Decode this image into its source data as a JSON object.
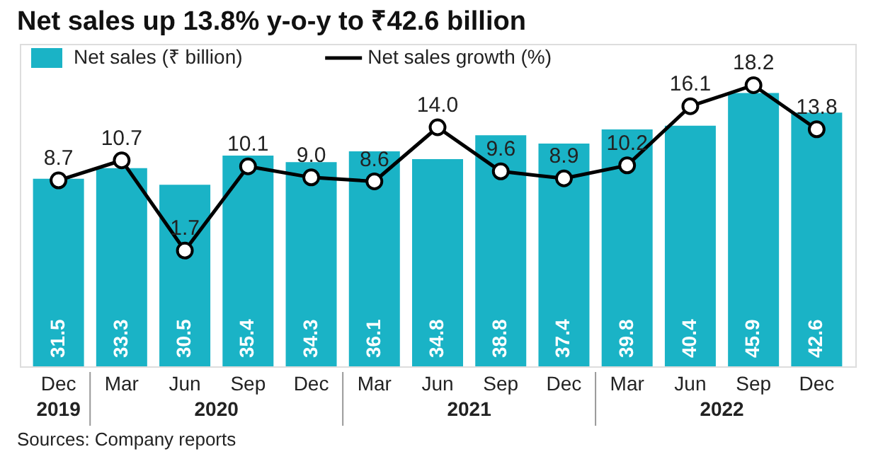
{
  "chart_data": {
    "type": "bar",
    "title": "Net sales up 13.8% y-o-y to ₹42.6 billion",
    "categories": [
      "Dec",
      "Mar",
      "Jun",
      "Sep",
      "Dec",
      "Mar",
      "Jun",
      "Sep",
      "Dec",
      "Mar",
      "Jun",
      "Sep",
      "Dec"
    ],
    "series": [
      {
        "name": "Net sales (₹ billion)",
        "color": "#1ab3c6",
        "values": [
          31.5,
          33.3,
          30.5,
          35.4,
          34.3,
          36.1,
          34.8,
          38.8,
          37.4,
          39.8,
          40.4,
          45.9,
          42.6
        ]
      },
      {
        "name": "Net sales growth (%)",
        "type": "line",
        "axis": "y2",
        "color": "#000000",
        "values": [
          8.7,
          10.7,
          1.7,
          10.1,
          9.0,
          8.6,
          14.0,
          9.6,
          8.9,
          10.2,
          16.1,
          18.2,
          13.8
        ],
        "value_labels": [
          "8.7",
          "10.7",
          "1.7",
          "10.1",
          "9.0",
          "8.6",
          "14.0",
          "9.6",
          "8.9",
          "10.2",
          "16.1",
          "18.2",
          "13.8"
        ]
      }
    ],
    "data_labels": true,
    "marker": "circle",
    "legend": "top left",
    "grid": false,
    "annotations": [
      "2019",
      "2020",
      "2021",
      "2022",
      "Sources: Company reports"
    ]
  }
}
